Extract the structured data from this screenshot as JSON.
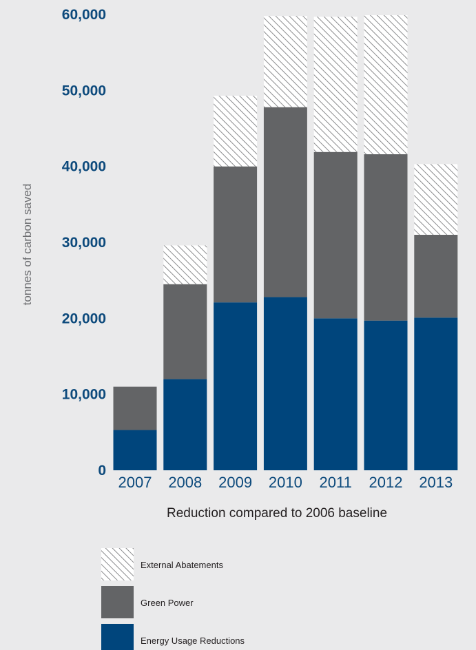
{
  "chart_data": {
    "type": "bar",
    "stacked": true,
    "title": "",
    "ylabel": "tonnes of carbon saved",
    "xlabel": "Reduction compared to 2006 baseline",
    "ylim": [
      0,
      60000
    ],
    "yticks": [
      0,
      10000,
      20000,
      30000,
      40000,
      50000,
      60000
    ],
    "ytick_labels": [
      "0",
      "10,000",
      "20,000",
      "30,000",
      "40,000",
      "50,000",
      "60,000"
    ],
    "categories": [
      "2007",
      "2008",
      "2009",
      "2010",
      "2011",
      "2012",
      "2013"
    ],
    "grid": false,
    "legend_position": "bottom-left",
    "series": [
      {
        "name": "Energy Usage Reductions",
        "color": "#00457c",
        "pattern": "solid",
        "values": [
          5300,
          12000,
          22100,
          22800,
          20000,
          19700,
          20100
        ]
      },
      {
        "name": "Green Power",
        "color": "#636466",
        "pattern": "solid",
        "values": [
          5700,
          12500,
          17900,
          25000,
          21900,
          21900,
          10900
        ]
      },
      {
        "name": "External Abatements",
        "color": "#8b8c8e",
        "pattern": "hatch",
        "values": [
          0,
          5100,
          9300,
          12000,
          17800,
          18300,
          9300
        ]
      }
    ]
  }
}
